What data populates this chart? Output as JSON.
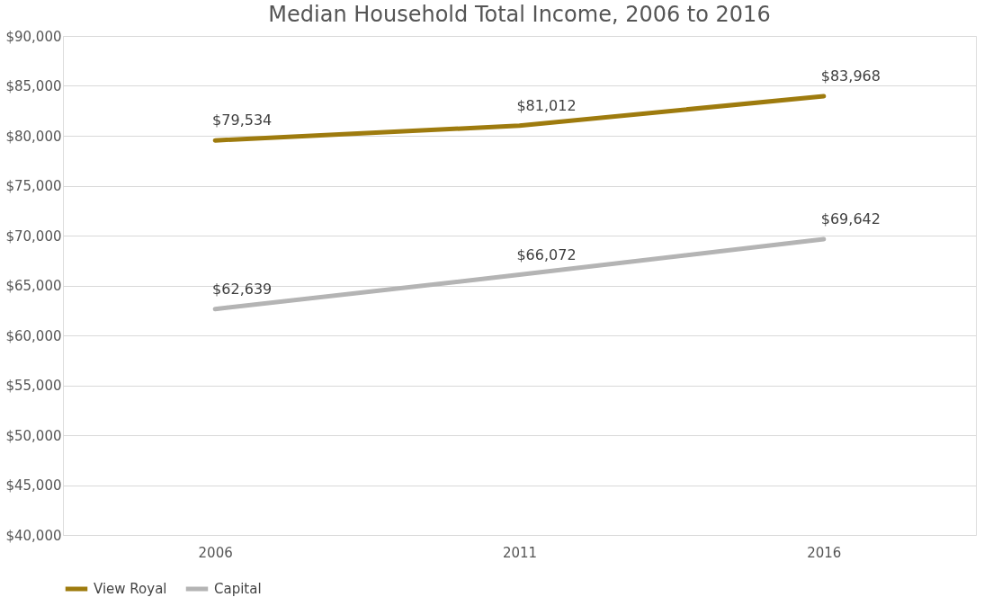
{
  "chart_data": {
    "type": "line",
    "title": "Median Household Total Income, 2006 to 2016",
    "categories": [
      "2006",
      "2011",
      "2016"
    ],
    "series": [
      {
        "name": "View Royal",
        "color": "#9e7b0e",
        "values": [
          79534,
          81012,
          83968
        ],
        "value_labels": [
          "$79,534",
          "$81,012",
          "$83,968"
        ]
      },
      {
        "name": "Capital",
        "color": "#b4b4b4",
        "values": [
          62639,
          66072,
          69642
        ],
        "value_labels": [
          "$62,639",
          "$66,072",
          "$69,642"
        ]
      }
    ],
    "ylim": [
      40000,
      90000
    ],
    "yticks": [
      {
        "value": 40000,
        "label": "$40,000"
      },
      {
        "value": 45000,
        "label": "$45,000"
      },
      {
        "value": 50000,
        "label": "$50,000"
      },
      {
        "value": 55000,
        "label": "$55,000"
      },
      {
        "value": 60000,
        "label": "$60,000"
      },
      {
        "value": 65000,
        "label": "$65,000"
      },
      {
        "value": 70000,
        "label": "$70,000"
      },
      {
        "value": 75000,
        "label": "$75,000"
      },
      {
        "value": 80000,
        "label": "$80,000"
      },
      {
        "value": 85000,
        "label": "$85,000"
      },
      {
        "value": 90000,
        "label": "$90,000"
      }
    ],
    "grid": "y",
    "legend": "bottom",
    "marker": "none",
    "line_style": "solid"
  }
}
